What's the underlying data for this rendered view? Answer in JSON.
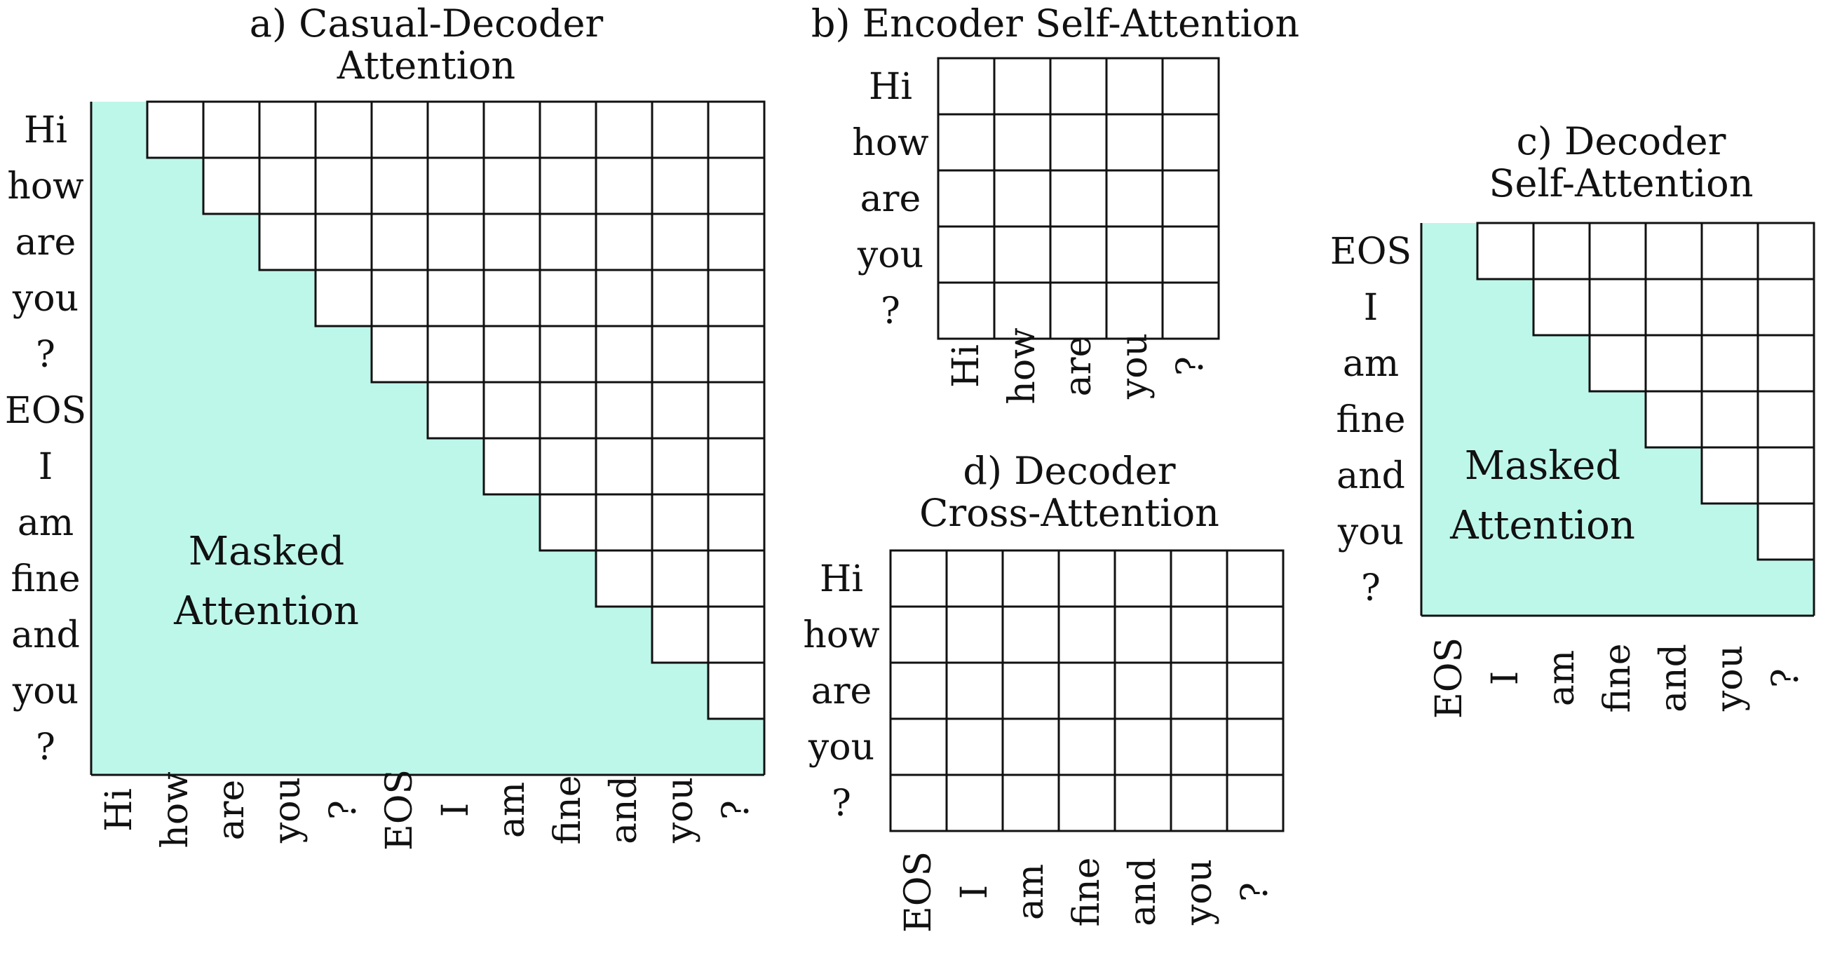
{
  "colors": {
    "masked_fill": "#bdf7ea",
    "grid_line": "#111111",
    "background": "#ffffff"
  },
  "panels": [
    {
      "id": "a",
      "title_lines": [
        "a) Casual-Decoder",
        "Attention"
      ],
      "rows": [
        "Hi",
        "how",
        "are",
        "you",
        "?",
        "EOS",
        "I",
        "am",
        "fine",
        "and",
        "you",
        "?"
      ],
      "cols": [
        "Hi",
        "how",
        "are",
        "you",
        "?",
        "EOS",
        "I",
        "am",
        "fine",
        "and",
        "you",
        "?"
      ],
      "masked": true,
      "mask_label_lines": [
        "Masked",
        "Attention"
      ]
    },
    {
      "id": "b",
      "title_lines": [
        "b) Encoder Self-Attention"
      ],
      "rows": [
        "Hi",
        "how",
        "are",
        "you",
        "?"
      ],
      "cols": [
        "Hi",
        "how",
        "are",
        "you",
        "?"
      ],
      "masked": false,
      "mask_label_lines": []
    },
    {
      "id": "c",
      "title_lines": [
        "c) Decoder",
        "Self-Attention"
      ],
      "rows": [
        "EOS",
        "I",
        "am",
        "fine",
        "and",
        "you",
        "?"
      ],
      "cols": [
        "EOS",
        "I",
        "am",
        "fine",
        "and",
        "you",
        "?"
      ],
      "masked": true,
      "mask_label_lines": [
        "Masked",
        "Attention"
      ]
    },
    {
      "id": "d",
      "title_lines": [
        "d) Decoder",
        "Cross-Attention"
      ],
      "rows": [
        "Hi",
        "how",
        "are",
        "you",
        "?"
      ],
      "cols": [
        "EOS",
        "I",
        "am",
        "fine",
        "and",
        "you",
        "?"
      ],
      "masked": false,
      "mask_label_lines": []
    }
  ]
}
